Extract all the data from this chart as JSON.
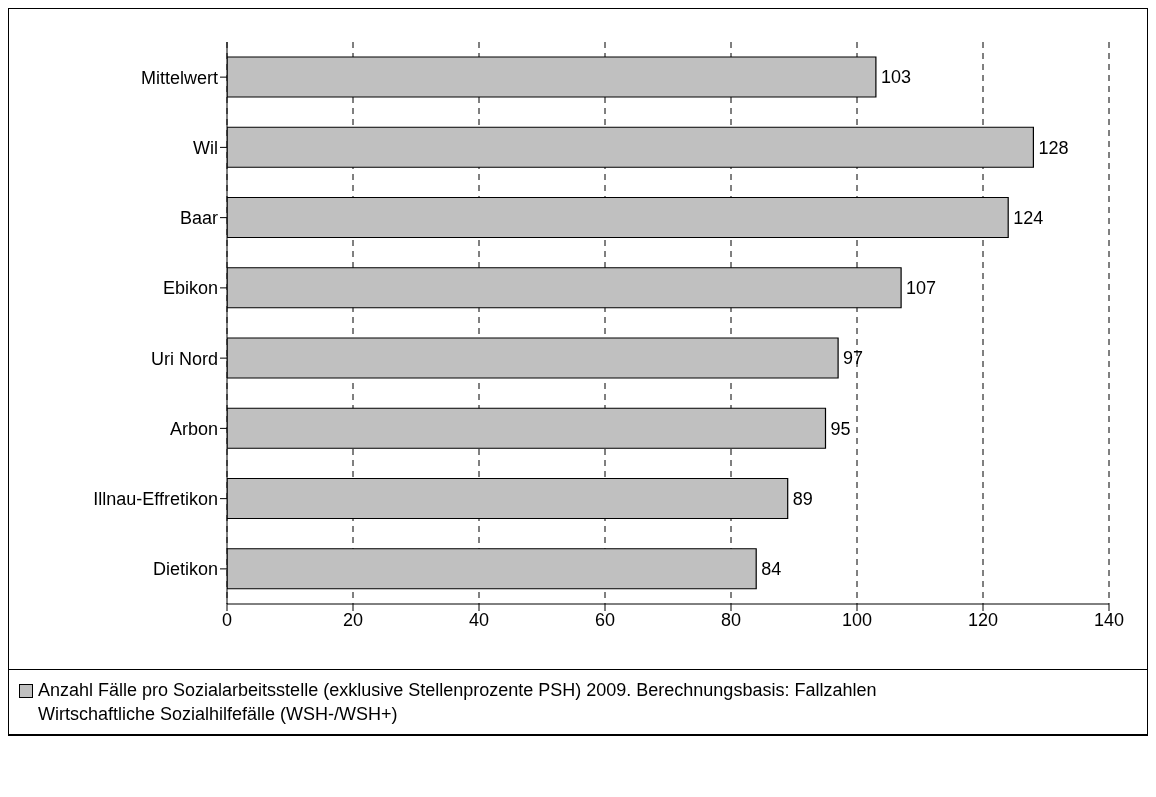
{
  "chart_data": {
    "type": "bar",
    "orientation": "horizontal",
    "categories": [
      "Mittelwert",
      "Wil",
      "Baar",
      "Ebikon",
      "Uri Nord",
      "Arbon",
      "Illnau-Effretikon",
      "Dietikon"
    ],
    "series": [
      {
        "name": "Anzahl Fälle pro Sozialarbeitsstelle (exklusive Stellenprozente PSH) 2009. Berechnungsbasis: Fallzahlen Wirtschaftliche Sozialhilfefälle (WSH-/WSH+)",
        "color": "#c0c0c0",
        "values": [
          103,
          128,
          124,
          107,
          97,
          95,
          89,
          84
        ]
      }
    ],
    "xlim": [
      0,
      140
    ],
    "xticks": [
      0,
      20,
      40,
      60,
      80,
      100,
      120,
      140
    ],
    "grid": "x",
    "legend": "bottom",
    "data_labels": true
  }
}
